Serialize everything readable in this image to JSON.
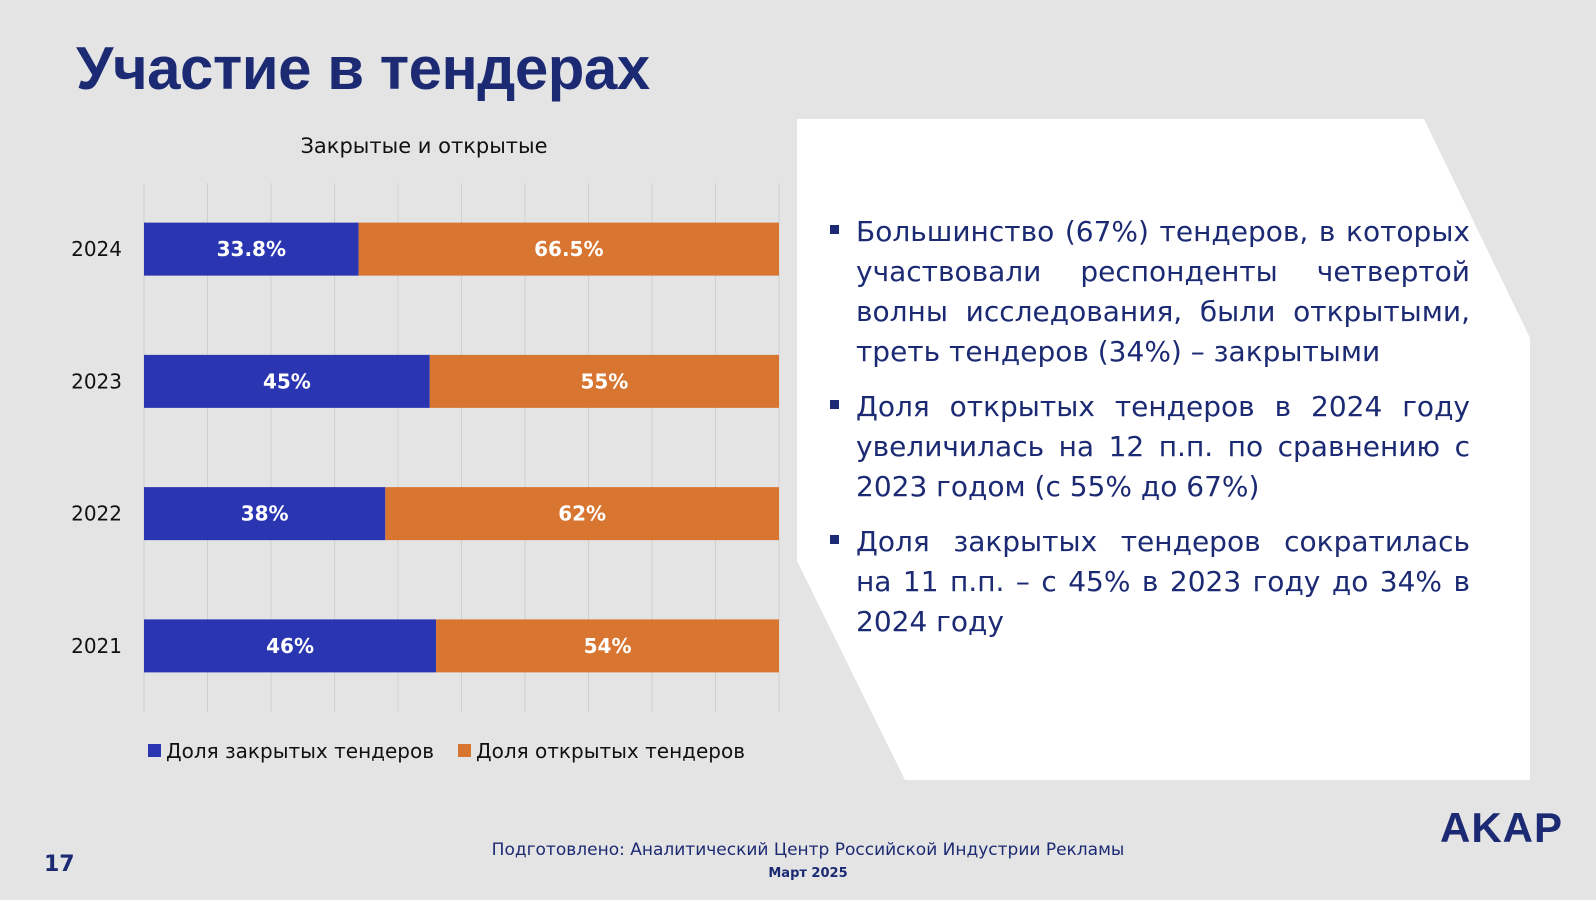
{
  "slide": {
    "title": "Участие в тендерах",
    "page_number": "17",
    "source": "Подготовлено: Аналитический Центр Российской Индустрии Рекламы",
    "date": "Март 2025",
    "logo": "AKAP"
  },
  "bullets": [
    "Большинство (67%) тендеров, в которых участвовали респонденты четвертой волны исследования, были открытыми, треть тендеров (34%) – закрытыми",
    "Доля открытых тендеров в 2024 году увеличилась на 12 п.п. по сравнению с 2023 годом (с 55% до 67%)",
    "Доля закрытых тендеров сократилась на 11 п.п. – с 45% в 2023 году до 34% в 2024 году"
  ],
  "colors": {
    "closed": "#2a35b2",
    "open": "#d87530",
    "title": "#1b2a73",
    "panel": "#ffffff",
    "background": "#e4e4e4"
  },
  "chart_data": {
    "type": "bar",
    "orientation": "horizontal",
    "stacked": true,
    "title": "Закрытые и открытые",
    "categories": [
      "2024",
      "2023",
      "2022",
      "2021"
    ],
    "series": [
      {
        "name": "Доля закрытых тендеров",
        "values": [
          33.8,
          45,
          38,
          46
        ],
        "labels": [
          "33.8%",
          "45%",
          "38%",
          "46%"
        ],
        "color": "#2a35b2"
      },
      {
        "name": "Доля открытых тендеров",
        "values": [
          66.5,
          55,
          62,
          54
        ],
        "labels": [
          "66.5%",
          "55%",
          "62%",
          "54%"
        ],
        "color": "#d87530"
      }
    ],
    "xlim": [
      0,
      100
    ],
    "grid": true,
    "legend": "bottom"
  }
}
